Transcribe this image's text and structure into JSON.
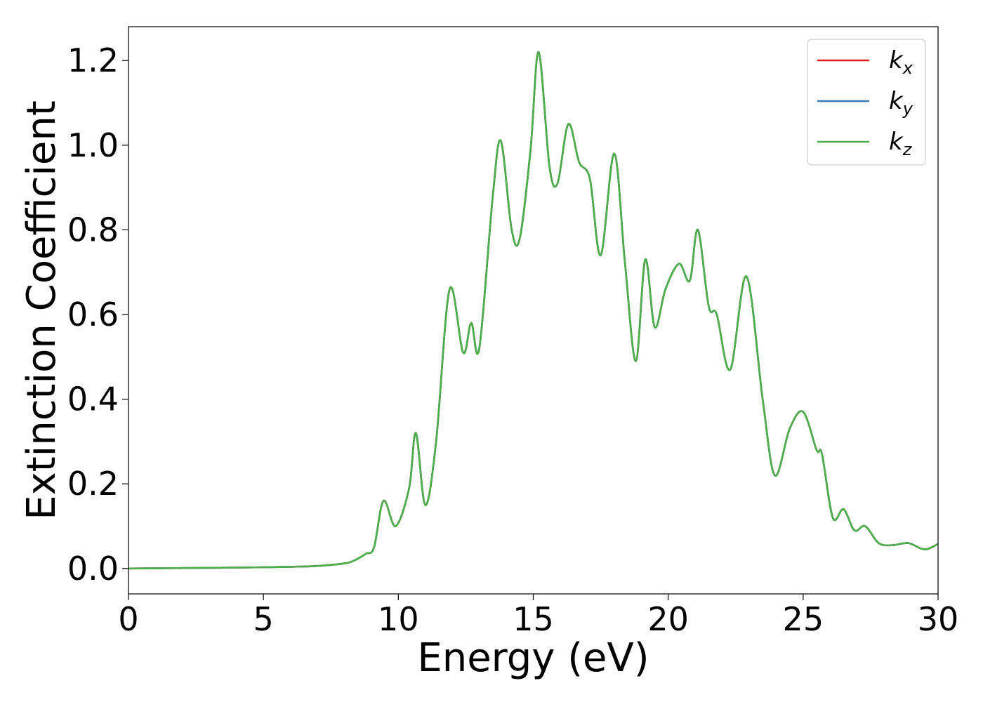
{
  "chart_data": {
    "type": "line",
    "title": "",
    "xlabel": "Energy (eV)",
    "ylabel": "Extinction Coefficient",
    "xlim": [
      0,
      30
    ],
    "ylim": [
      -0.06,
      1.28
    ],
    "xticks": [
      0,
      5,
      10,
      15,
      20,
      25,
      30
    ],
    "xtick_labels": [
      "0",
      "5",
      "10",
      "15",
      "20",
      "25",
      "30"
    ],
    "yticks": [
      0.0,
      0.2,
      0.4,
      0.6,
      0.8,
      1.0,
      1.2
    ],
    "ytick_labels": [
      "0.0",
      "0.2",
      "0.4",
      "0.6",
      "0.8",
      "1.0",
      "1.2"
    ],
    "grid": false,
    "legend_position": "top-right",
    "series": [
      {
        "name": "k_x",
        "label_main": "k",
        "label_sub": "x",
        "color": "#e41a1c",
        "x": [
          0,
          2,
          4,
          6,
          7,
          8,
          8.4,
          8.8,
          9.1,
          9.45,
          9.9,
          10.4,
          10.65,
          11.0,
          11.4,
          11.9,
          12.4,
          12.7,
          13.0,
          13.5,
          13.8,
          14.2,
          14.5,
          14.9,
          15.2,
          15.6,
          15.9,
          16.3,
          16.7,
          17.1,
          17.5,
          18.0,
          18.4,
          18.8,
          19.15,
          19.5,
          19.9,
          20.4,
          20.8,
          21.1,
          21.5,
          21.8,
          22.3,
          22.9,
          23.5,
          23.95,
          24.5,
          25.0,
          25.5,
          25.7,
          26.1,
          26.5,
          26.9,
          27.3,
          27.8,
          28.3,
          28.9,
          29.5,
          30
        ],
        "y": [
          0.0,
          0.001,
          0.002,
          0.004,
          0.006,
          0.012,
          0.02,
          0.035,
          0.05,
          0.16,
          0.1,
          0.19,
          0.32,
          0.15,
          0.3,
          0.66,
          0.51,
          0.58,
          0.52,
          0.88,
          1.01,
          0.8,
          0.78,
          0.99,
          1.22,
          0.95,
          0.91,
          1.05,
          0.96,
          0.92,
          0.74,
          0.98,
          0.72,
          0.49,
          0.73,
          0.57,
          0.66,
          0.72,
          0.68,
          0.8,
          0.62,
          0.6,
          0.47,
          0.69,
          0.4,
          0.22,
          0.33,
          0.37,
          0.28,
          0.27,
          0.12,
          0.14,
          0.09,
          0.1,
          0.06,
          0.055,
          0.06,
          0.045,
          0.058
        ]
      },
      {
        "name": "k_y",
        "label_main": "k",
        "label_sub": "y",
        "color": "#377eb8",
        "x": [
          0,
          2,
          4,
          6,
          7,
          8,
          8.4,
          8.8,
          9.1,
          9.45,
          9.9,
          10.4,
          10.65,
          11.0,
          11.4,
          11.9,
          12.4,
          12.7,
          13.0,
          13.5,
          13.8,
          14.2,
          14.5,
          14.9,
          15.2,
          15.6,
          15.9,
          16.3,
          16.7,
          17.1,
          17.5,
          18.0,
          18.4,
          18.8,
          19.15,
          19.5,
          19.9,
          20.4,
          20.8,
          21.1,
          21.5,
          21.8,
          22.3,
          22.9,
          23.5,
          23.95,
          24.5,
          25.0,
          25.5,
          25.7,
          26.1,
          26.5,
          26.9,
          27.3,
          27.8,
          28.3,
          28.9,
          29.5,
          30
        ],
        "y": [
          0.0,
          0.001,
          0.002,
          0.004,
          0.006,
          0.012,
          0.02,
          0.035,
          0.05,
          0.16,
          0.1,
          0.19,
          0.32,
          0.15,
          0.3,
          0.66,
          0.51,
          0.58,
          0.52,
          0.88,
          1.01,
          0.8,
          0.78,
          0.99,
          1.22,
          0.95,
          0.91,
          1.05,
          0.96,
          0.92,
          0.74,
          0.98,
          0.72,
          0.49,
          0.73,
          0.57,
          0.66,
          0.72,
          0.68,
          0.8,
          0.62,
          0.6,
          0.47,
          0.69,
          0.4,
          0.22,
          0.33,
          0.37,
          0.28,
          0.27,
          0.12,
          0.14,
          0.09,
          0.1,
          0.06,
          0.055,
          0.06,
          0.045,
          0.058
        ]
      },
      {
        "name": "k_z",
        "label_main": "k",
        "label_sub": "z",
        "color": "#4daf4a",
        "x": [
          0,
          2,
          4,
          6,
          7,
          8,
          8.4,
          8.8,
          9.1,
          9.45,
          9.9,
          10.4,
          10.65,
          11.0,
          11.4,
          11.9,
          12.4,
          12.7,
          13.0,
          13.5,
          13.8,
          14.2,
          14.5,
          14.9,
          15.2,
          15.6,
          15.9,
          16.3,
          16.7,
          17.1,
          17.5,
          18.0,
          18.4,
          18.8,
          19.15,
          19.5,
          19.9,
          20.4,
          20.8,
          21.1,
          21.5,
          21.8,
          22.3,
          22.9,
          23.5,
          23.95,
          24.5,
          25.0,
          25.5,
          25.7,
          26.1,
          26.5,
          26.9,
          27.3,
          27.8,
          28.3,
          28.9,
          29.5,
          30
        ],
        "y": [
          0.0,
          0.001,
          0.002,
          0.004,
          0.006,
          0.012,
          0.02,
          0.035,
          0.05,
          0.16,
          0.1,
          0.19,
          0.32,
          0.15,
          0.3,
          0.66,
          0.51,
          0.58,
          0.52,
          0.88,
          1.01,
          0.8,
          0.78,
          0.99,
          1.22,
          0.95,
          0.91,
          1.05,
          0.96,
          0.92,
          0.74,
          0.98,
          0.72,
          0.49,
          0.73,
          0.57,
          0.66,
          0.72,
          0.68,
          0.8,
          0.62,
          0.6,
          0.47,
          0.69,
          0.4,
          0.22,
          0.33,
          0.37,
          0.28,
          0.27,
          0.12,
          0.14,
          0.09,
          0.1,
          0.06,
          0.055,
          0.06,
          0.045,
          0.058
        ]
      }
    ]
  }
}
